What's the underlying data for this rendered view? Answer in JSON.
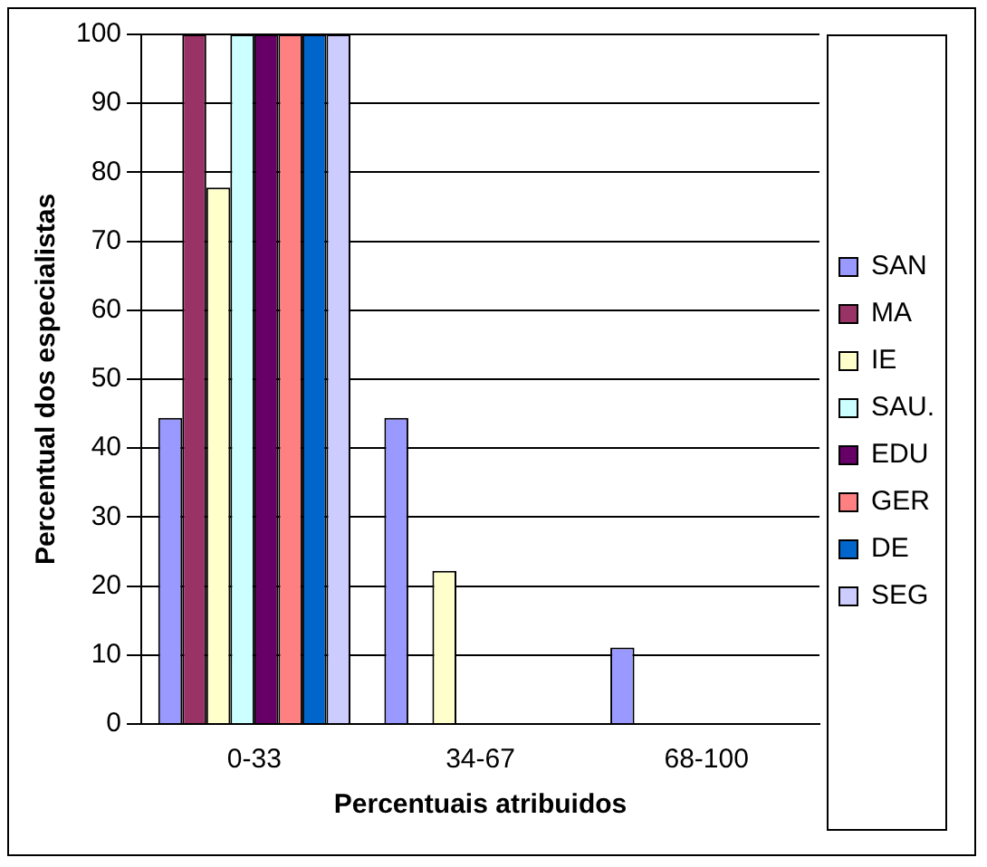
{
  "chart_data": {
    "type": "bar",
    "xlabel": "Percentuais atribuidos",
    "ylabel": "Percentual dos especialistas",
    "categories": [
      "0-33",
      "34-67",
      "68-100"
    ],
    "series": [
      {
        "name": "SAN",
        "color": "#9999ff",
        "values": [
          44.4,
          44.4,
          11.1
        ]
      },
      {
        "name": "MA",
        "color": "#993366",
        "values": [
          100,
          0,
          0
        ]
      },
      {
        "name": "IE",
        "color": "#ffffcc",
        "values": [
          77.8,
          22.2,
          0
        ]
      },
      {
        "name": "SAU.",
        "color": "#ccffff",
        "values": [
          100,
          0,
          0
        ]
      },
      {
        "name": "EDU",
        "color": "#660066",
        "values": [
          100,
          0,
          0
        ]
      },
      {
        "name": "GER",
        "color": "#ff8080",
        "values": [
          100,
          0,
          0
        ]
      },
      {
        "name": "DE",
        "color": "#0066cc",
        "values": [
          100,
          0,
          0
        ]
      },
      {
        "name": "SEG",
        "color": "#ccccff",
        "values": [
          100,
          0,
          0
        ]
      }
    ],
    "ylim": [
      0,
      100
    ],
    "yticks": [
      0,
      10,
      20,
      30,
      40,
      50,
      60,
      70,
      80,
      90,
      100
    ],
    "grid": "y",
    "legend": "right"
  }
}
